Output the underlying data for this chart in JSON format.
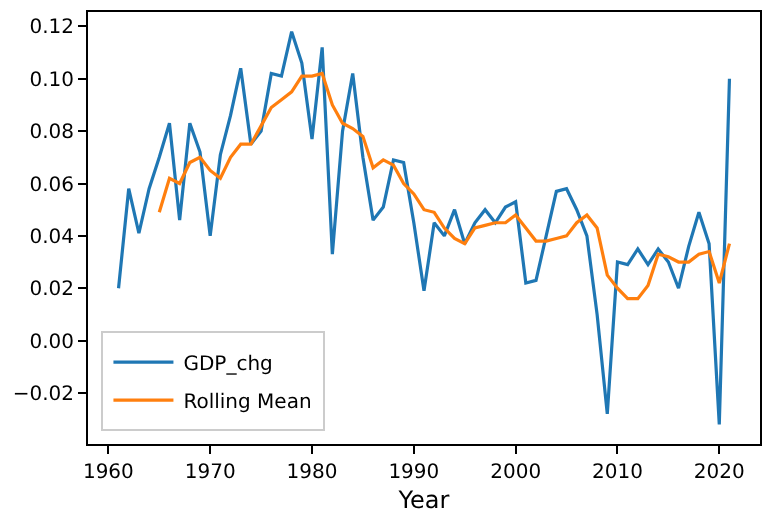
{
  "chart_data": {
    "type": "line",
    "xlabel": "Year",
    "x": [
      1961,
      1962,
      1963,
      1964,
      1965,
      1966,
      1967,
      1968,
      1969,
      1970,
      1971,
      1972,
      1973,
      1974,
      1975,
      1976,
      1977,
      1978,
      1979,
      1980,
      1981,
      1982,
      1983,
      1984,
      1985,
      1986,
      1987,
      1988,
      1989,
      1990,
      1991,
      1992,
      1993,
      1994,
      1995,
      1996,
      1997,
      1998,
      1999,
      2000,
      2001,
      2002,
      2003,
      2004,
      2005,
      2006,
      2007,
      2008,
      2009,
      2010,
      2011,
      2012,
      2013,
      2014,
      2015,
      2016,
      2017,
      2018,
      2019,
      2020,
      2021
    ],
    "series": [
      {
        "name": "GDP_chg",
        "color": "#1f77b4",
        "values": [
          0.02,
          0.058,
          0.041,
          0.058,
          0.07,
          0.083,
          0.046,
          0.083,
          0.072,
          0.04,
          0.071,
          0.086,
          0.104,
          0.075,
          0.08,
          0.102,
          0.101,
          0.118,
          0.106,
          0.077,
          0.112,
          0.033,
          0.08,
          0.102,
          0.07,
          0.046,
          0.051,
          0.069,
          0.068,
          0.045,
          0.019,
          0.045,
          0.04,
          0.05,
          0.037,
          0.045,
          0.05,
          0.045,
          0.051,
          0.053,
          0.022,
          0.023,
          0.04,
          0.057,
          0.058,
          0.05,
          0.04,
          0.01,
          -0.028,
          0.03,
          0.029,
          0.035,
          0.029,
          0.035,
          0.03,
          0.02,
          0.036,
          0.049,
          0.037,
          -0.032,
          0.1
        ]
      },
      {
        "name": "Rolling Mean",
        "color": "#ff7f0e",
        "values": [
          null,
          null,
          null,
          null,
          0.049,
          0.062,
          0.06,
          0.068,
          0.07,
          0.065,
          0.062,
          0.07,
          0.075,
          0.075,
          0.082,
          0.089,
          0.092,
          0.095,
          0.101,
          0.101,
          0.102,
          0.09,
          0.083,
          0.081,
          0.078,
          0.066,
          0.069,
          0.067,
          0.06,
          0.056,
          0.05,
          0.049,
          0.043,
          0.039,
          0.037,
          0.043,
          0.044,
          0.045,
          0.045,
          0.048,
          0.043,
          0.038,
          0.038,
          0.039,
          0.04,
          0.045,
          0.048,
          0.043,
          0.025,
          0.02,
          0.016,
          0.016,
          0.021,
          0.033,
          0.032,
          0.03,
          0.03,
          0.033,
          0.034,
          0.022,
          0.037
        ]
      }
    ],
    "xlim": [
      1958,
      2024
    ],
    "ylim": [
      -0.0395,
      0.1255
    ],
    "xticks": [
      1960,
      1970,
      1980,
      1990,
      2000,
      2010,
      2020
    ],
    "yticks": [
      {
        "value": -0.02,
        "label": "−0.02"
      },
      {
        "value": 0,
        "label": "0.00"
      },
      {
        "value": 0.02,
        "label": "0.02"
      },
      {
        "value": 0.04,
        "label": "0.04"
      },
      {
        "value": 0.06,
        "label": "0.06"
      },
      {
        "value": 0.08,
        "label": "0.08"
      },
      {
        "value": 0.1,
        "label": "0.10"
      },
      {
        "value": 0.12,
        "label": "0.12"
      }
    ],
    "legend": "bottom left",
    "marker": "none",
    "line_style": "solid"
  }
}
